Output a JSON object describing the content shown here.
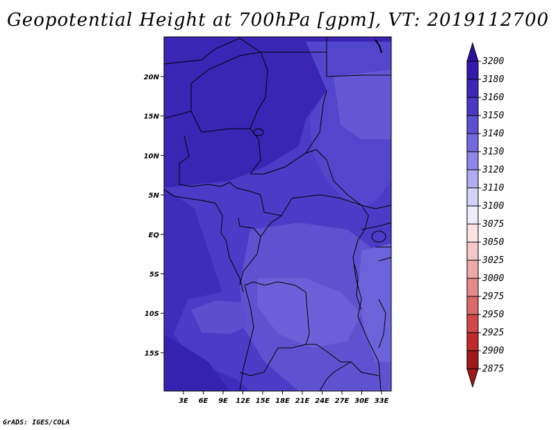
{
  "title": "Geopotential Height at 700hPa [gpm], VT: 2019112700",
  "credit": "GrADS: IGES/COLA",
  "map": {
    "lon_ticks": [
      "3E",
      "6E",
      "9E",
      "12E",
      "15E",
      "18E",
      "21E",
      "24E",
      "27E",
      "30E",
      "33E"
    ],
    "lat_ticks": [
      "20N",
      "15N",
      "10N",
      "5N",
      "EQ",
      "5S",
      "10S",
      "15S"
    ]
  },
  "colorbar": {
    "levels": [
      "3200",
      "3180",
      "3160",
      "3150",
      "3140",
      "3130",
      "3120",
      "3110",
      "3100",
      "3075",
      "3050",
      "3025",
      "3000",
      "2975",
      "2950",
      "2925",
      "2900",
      "2875"
    ],
    "colors": [
      "#2a0fa0",
      "#3419ae",
      "#3c27b8",
      "#4a38c4",
      "#5b50d2",
      "#7468de",
      "#8f86ea",
      "#b1acf2",
      "#d3d1f8",
      "#ececfc",
      "#fbe3e3",
      "#f5c8c8",
      "#eeaaaa",
      "#e58a8a",
      "#dc6a6a",
      "#d24848",
      "#c02a2a",
      "#a01818"
    ],
    "top_arrow_color": "#2a0fa0",
    "bottom_arrow_color": "#a01818"
  },
  "field_colors": {
    "deep": "#3a25b4",
    "mid": "#4b3bc6",
    "light": "#5f54d2",
    "lighter": "#6f66da"
  }
}
